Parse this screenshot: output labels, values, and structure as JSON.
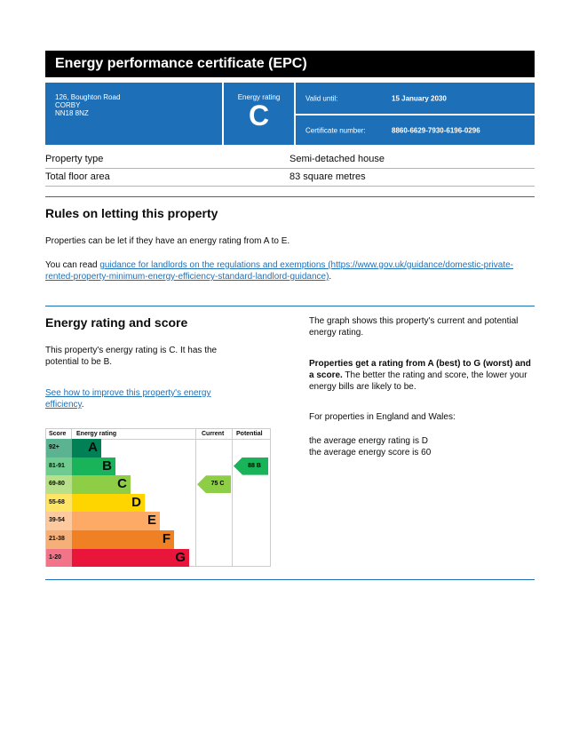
{
  "title": "Energy performance certificate (EPC)",
  "address": [
    "126, Boughton Road",
    "CORBY",
    "NN18 8NZ"
  ],
  "energy_rating": {
    "label": "Energy rating",
    "value": "C"
  },
  "valid_until": {
    "label": "Valid until:",
    "value": "15 January 2030"
  },
  "certificate": {
    "label": "Certificate number:",
    "value": "8860-6629-7930-6196-0296"
  },
  "property": [
    {
      "label": "Property type",
      "value": "Semi-detached house"
    },
    {
      "label": "Total floor area",
      "value": "83 square metres"
    }
  ],
  "rules": {
    "heading": "Rules on letting this property",
    "p1": "Properties can be let if they have an energy rating from A to E.",
    "p2_prefix": "You can read ",
    "p2_link": "guidance for landlords on the regulations and exemptions (https://www.gov.uk/guidance/domestic-private-rented-property-minimum-energy-efficiency-standard-landlord-guidance)",
    "p2_suffix": "."
  },
  "score": {
    "heading": "Energy rating and score",
    "p1": "This property's energy rating is C. It has the potential to be B.",
    "link": "See how to improve this property's energy efficiency",
    "link_suffix": ".",
    "right_p1": "The graph shows this property's current and potential energy rating.",
    "right_bold": "Properties get a rating from A (best) to G (worst) and a score.",
    "right_p2": " The better the rating and score, the lower your energy bills are likely to be.",
    "right_p3": "For properties in England and Wales:",
    "right_p4": "the average energy rating is D",
    "right_p5": "the average energy score is 60"
  },
  "chart_data": {
    "type": "table",
    "headers": [
      "Score",
      "Energy rating",
      "Current",
      "Potential"
    ],
    "bands": [
      {
        "score": "92+",
        "letter": "A",
        "color": "#008054",
        "light": "#5cb392"
      },
      {
        "score": "81-91",
        "letter": "B",
        "color": "#19b459",
        "light": "#6fcb8f"
      },
      {
        "score": "69-80",
        "letter": "C",
        "color": "#8dce46",
        "light": "#b8e08a"
      },
      {
        "score": "55-68",
        "letter": "D",
        "color": "#ffd500",
        "light": "#ffe566"
      },
      {
        "score": "39-54",
        "letter": "E",
        "color": "#fcaa65",
        "light": "#fdcaa0"
      },
      {
        "score": "21-38",
        "letter": "F",
        "color": "#ef8023",
        "light": "#f5b07a"
      },
      {
        "score": "1-20",
        "letter": "G",
        "color": "#e9153b",
        "light": "#f27489"
      }
    ],
    "current": {
      "score": 75,
      "band": "C",
      "label": "75  C"
    },
    "potential": {
      "score": 88,
      "band": "B",
      "label": "88  B"
    }
  }
}
